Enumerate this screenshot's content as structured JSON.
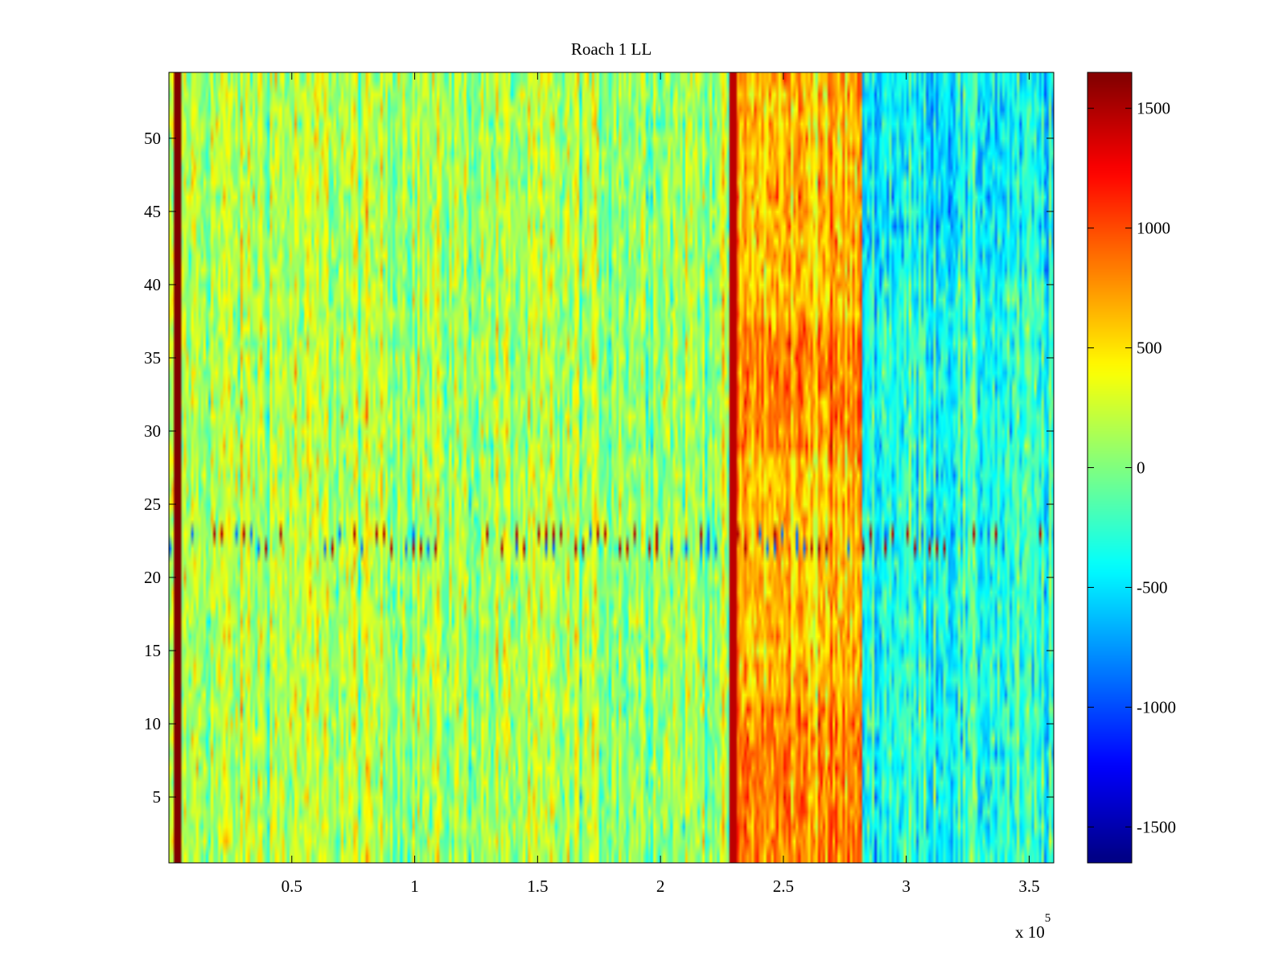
{
  "chart_data": {
    "type": "heatmap",
    "title": "Roach 1 LL",
    "xlabel": "",
    "ylabel": "",
    "x_exponent_label": {
      "base": "x 10",
      "exp": "5"
    },
    "xlim": [
      0,
      3.6
    ],
    "ylim": [
      0.5,
      54.5
    ],
    "x_ticks": [
      0.5,
      1,
      1.5,
      2,
      2.5,
      3,
      3.5
    ],
    "x_tick_labels": [
      "0.5",
      "1",
      "1.5",
      "2",
      "2.5",
      "3",
      "3.5"
    ],
    "y_ticks": [
      5,
      10,
      15,
      20,
      25,
      30,
      35,
      40,
      45,
      50
    ],
    "y_tick_labels": [
      "5",
      "10",
      "15",
      "20",
      "25",
      "30",
      "35",
      "40",
      "45",
      "50"
    ],
    "rows": 54,
    "colormap": "jet",
    "colorbar": {
      "range": [
        -1650,
        1650
      ],
      "ticks": [
        1500,
        1000,
        500,
        0,
        -500,
        -1000,
        -1500
      ],
      "tick_labels": [
        "1500",
        "1000",
        "500",
        "0",
        "-500",
        "-1000",
        "-1500"
      ]
    },
    "regions": [
      {
        "x_from": 0.02,
        "x_to": 0.05,
        "mean": 1650,
        "note": "saturated vertical stripe"
      },
      {
        "x_from": 0.05,
        "x_to": 1.0,
        "mean": 170
      },
      {
        "x_from": 1.0,
        "x_to": 2.28,
        "mean": 120
      },
      {
        "x_from": 2.28,
        "x_to": 2.31,
        "mean": 1450,
        "note": "red vertical stripe"
      },
      {
        "x_from": 2.31,
        "x_to": 2.82,
        "mean": 620
      },
      {
        "x_from": 2.82,
        "x_to": 3.6,
        "mean": -300
      }
    ],
    "row_band": {
      "y_from": 21.5,
      "y_to": 23.5,
      "note": "noisy horizontal band with red spikes"
    }
  }
}
